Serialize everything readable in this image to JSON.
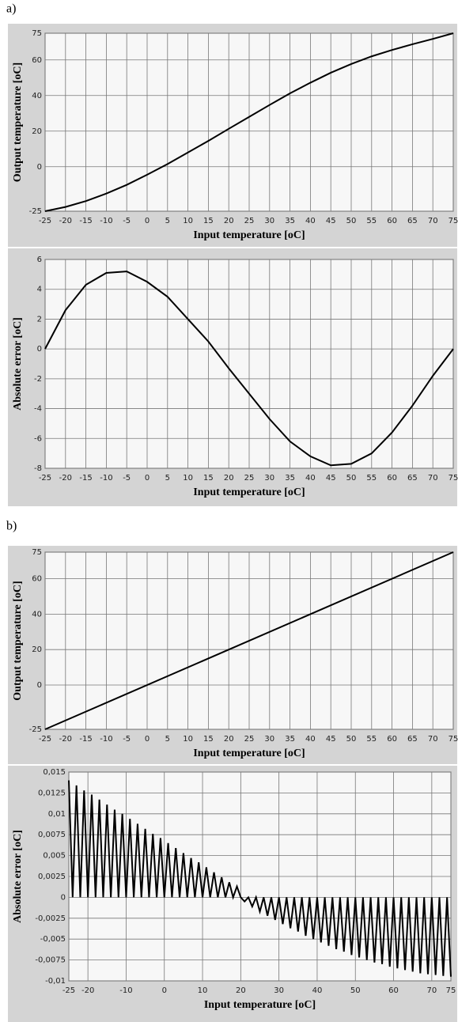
{
  "chart_data": [
    {
      "type": "line",
      "panel_label": "a)",
      "xlabel": "Input temperature [oC]",
      "ylabel": "Output temperature [oC]",
      "x": [
        -25,
        -20,
        -15,
        -10,
        -5,
        0,
        5,
        10,
        15,
        20,
        25,
        30,
        35,
        40,
        45,
        50,
        55,
        60,
        65,
        70,
        75
      ],
      "values": [
        -25,
        -22.6,
        -19.3,
        -15.1,
        -10.2,
        -4.5,
        1.5,
        8,
        14.5,
        21.3,
        28,
        34.7,
        41.2,
        47.2,
        52.8,
        57.7,
        62,
        65.6,
        68.8,
        71.8,
        75
      ],
      "color": "#000000",
      "xlim": [
        -25,
        75
      ],
      "ylim": [
        -25,
        75
      ],
      "xticks": [
        -25,
        -20,
        -15,
        -10,
        -5,
        0,
        5,
        10,
        15,
        20,
        25,
        30,
        35,
        40,
        45,
        50,
        55,
        60,
        65,
        70,
        75
      ],
      "yticks": [
        -25,
        0,
        20,
        40,
        60,
        75
      ],
      "grid": true
    },
    {
      "type": "line",
      "xlabel": "Input temperature [oC]",
      "ylabel": "Absolute error  [oC]",
      "x": [
        -25,
        -20,
        -15,
        -10,
        -5,
        0,
        5,
        10,
        15,
        20,
        25,
        30,
        35,
        40,
        45,
        50,
        55,
        60,
        65,
        70,
        75
      ],
      "values": [
        0,
        2.6,
        4.3,
        5.1,
        5.2,
        4.5,
        3.5,
        2,
        0.5,
        -1.3,
        -3,
        -4.7,
        -6.2,
        -7.2,
        -7.8,
        -7.7,
        -7,
        -5.6,
        -3.8,
        -1.8,
        0
      ],
      "color": "#000000",
      "xlim": [
        -25,
        75
      ],
      "ylim": [
        -8,
        6
      ],
      "xticks": [
        -25,
        -20,
        -15,
        -10,
        -5,
        0,
        5,
        10,
        15,
        20,
        25,
        30,
        35,
        40,
        45,
        50,
        55,
        60,
        65,
        70,
        75
      ],
      "yticks": [
        -8,
        -6,
        -4,
        -2,
        0,
        2,
        4,
        6
      ],
      "grid": true
    },
    {
      "type": "line",
      "panel_label": "b)",
      "xlabel": "Input temperature [oC]",
      "ylabel": "Output temperature [oC]",
      "x": [
        -25,
        75
      ],
      "values": [
        -25,
        75
      ],
      "color": "#000000",
      "xlim": [
        -25,
        75
      ],
      "ylim": [
        -25,
        75
      ],
      "xticks": [
        -25,
        -20,
        -15,
        -10,
        -5,
        0,
        5,
        10,
        15,
        20,
        25,
        30,
        35,
        40,
        45,
        50,
        55,
        60,
        65,
        70,
        75
      ],
      "yticks": [
        -25,
        0,
        20,
        40,
        60,
        75
      ],
      "grid": true
    },
    {
      "type": "line",
      "xlabel": "Input temperature [oC]",
      "ylabel": "Absolute error  [oC]",
      "x": [
        -25,
        -24,
        -23,
        -22,
        -21,
        -20,
        -19,
        -18,
        -17,
        -16,
        -15,
        -14,
        -13,
        -12,
        -11,
        -10,
        -9,
        -8,
        -7,
        -6,
        -5,
        -4,
        -3,
        -2,
        -1,
        0,
        1,
        2,
        3,
        4,
        5,
        6,
        7,
        8,
        9,
        10,
        11,
        12,
        13,
        14,
        15,
        16,
        17,
        18,
        19,
        20,
        21,
        22,
        23,
        24,
        25,
        26,
        27,
        28,
        29,
        30,
        31,
        32,
        33,
        34,
        35,
        36,
        37,
        38,
        39,
        40,
        41,
        42,
        43,
        44,
        45,
        46,
        47,
        48,
        49,
        50,
        51,
        52,
        53,
        54,
        55,
        56,
        57,
        58,
        59,
        60,
        61,
        62,
        63,
        64,
        65,
        66,
        67,
        68,
        69,
        70,
        71,
        72,
        73,
        74,
        75
      ],
      "values": [
        0.014,
        0,
        0.0134,
        0,
        0.0128,
        0,
        0.0123,
        0,
        0.0117,
        0,
        0.0111,
        0,
        0.0105,
        0,
        0.01,
        0,
        0.0094,
        0,
        0.0088,
        0,
        0.0082,
        0,
        0.0076,
        0,
        0.0071,
        0,
        0.0065,
        0,
        0.0059,
        0,
        0.0053,
        0,
        0.0047,
        0,
        0.0042,
        0,
        0.0036,
        0,
        0.003,
        0,
        0.0024,
        0,
        0.0018,
        0,
        0.0013,
        0,
        -0.0005,
        0,
        -0.0011,
        0,
        -0.0017,
        0,
        -0.0022,
        0,
        -0.0027,
        0,
        -0.0032,
        0,
        -0.0037,
        0,
        -0.0041,
        0,
        -0.0046,
        0,
        -0.005,
        0,
        -0.0054,
        0,
        -0.0058,
        0,
        -0.0062,
        0,
        -0.0065,
        0,
        -0.0069,
        0,
        -0.0072,
        0,
        -0.0075,
        0,
        -0.0078,
        0,
        -0.008,
        0,
        -0.0083,
        0,
        -0.0085,
        0,
        -0.0087,
        0,
        -0.0089,
        0,
        -0.0091,
        0,
        -0.0092,
        0,
        -0.0093,
        0,
        -0.0094,
        0,
        -0.0095
      ],
      "color": "#000000",
      "xlim": [
        -25,
        75
      ],
      "ylim": [
        -0.01,
        0.015
      ],
      "xticks": [
        -25,
        -20,
        -10,
        0,
        10,
        20,
        30,
        40,
        50,
        60,
        70,
        75
      ],
      "yticks": [
        {
          "value": -0.01,
          "label": "-0,01"
        },
        {
          "value": -0.0075,
          "label": "-0,0075"
        },
        {
          "value": -0.005,
          "label": "-0,005"
        },
        {
          "value": -0.0025,
          "label": "-0,0025"
        },
        0,
        {
          "value": 0.0025,
          "label": "0,0025"
        },
        {
          "value": 0.005,
          "label": "0,005"
        },
        {
          "value": 0.0075,
          "label": "0,0075"
        },
        {
          "value": 0.01,
          "label": "0,01"
        },
        {
          "value": 0.0125,
          "label": "0,0125"
        },
        {
          "value": 0.015,
          "label": "0,015"
        }
      ],
      "grid": true
    }
  ]
}
